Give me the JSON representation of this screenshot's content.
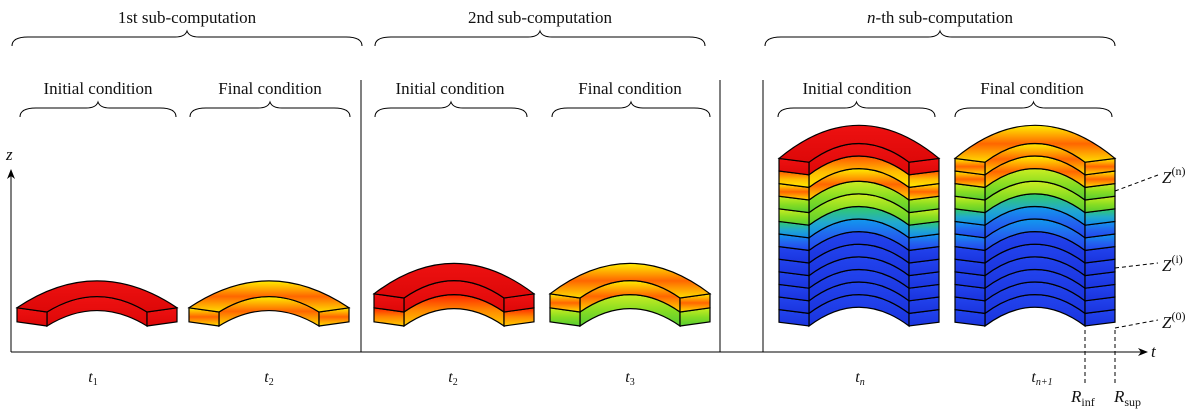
{
  "headers": [
    {
      "main_italic": "",
      "main_rest": "1st sub-computation",
      "initial": "Initial condition",
      "final": "Final condition"
    },
    {
      "main_italic": "",
      "main_rest": "2nd sub-computation",
      "initial": "Initial condition",
      "final": "Final condition"
    },
    {
      "main_italic": "n",
      "main_rest": "-th sub-computation",
      "initial": "Initial condition",
      "final": "Final condition"
    }
  ],
  "axes": {
    "z_label": "z",
    "t_label": "t"
  },
  "time_labels": [
    {
      "base": "t",
      "sub": "1"
    },
    {
      "base": "t",
      "sub": "2"
    },
    {
      "base": "t",
      "sub": "2"
    },
    {
      "base": "t",
      "sub": "3"
    },
    {
      "base": "t",
      "sub": "n"
    },
    {
      "base": "t",
      "sub": "n+1"
    }
  ],
  "z_levels": [
    {
      "base": "Z",
      "sup": "(n)"
    },
    {
      "base": "Z",
      "sup": "(i)"
    },
    {
      "base": "Z",
      "sup": "(0)"
    }
  ],
  "radii": [
    {
      "base": "R",
      "sub": "inf"
    },
    {
      "base": "R",
      "sub": "sup"
    }
  ],
  "colors": {
    "red": "#ee1111",
    "orange": "#ff8c00",
    "yellow": "#ffee00",
    "green": "#66dd22",
    "cyan": "#22bbaa",
    "blue": "#2233ee",
    "line": "#000000"
  },
  "stacks": [
    {
      "layers": [
        "red"
      ]
    },
    {
      "layers": [
        "yellow-band"
      ]
    },
    {
      "layers": [
        "red",
        "red-band"
      ]
    },
    {
      "layers": [
        "yellow-band",
        "green-band"
      ]
    },
    {
      "layers": [
        "red",
        "orange-band",
        "yellow-band",
        "green-band",
        "green-band",
        "cyan-band",
        "blue-band",
        "blue",
        "blue",
        "blue",
        "blue",
        "blue",
        "blue"
      ]
    },
    {
      "layers": [
        "yellow-band",
        "yellow-band",
        "green-band",
        "green-band",
        "cyan-band",
        "blue-band",
        "blue-band",
        "blue",
        "blue",
        "blue",
        "blue",
        "blue",
        "blue"
      ]
    }
  ]
}
